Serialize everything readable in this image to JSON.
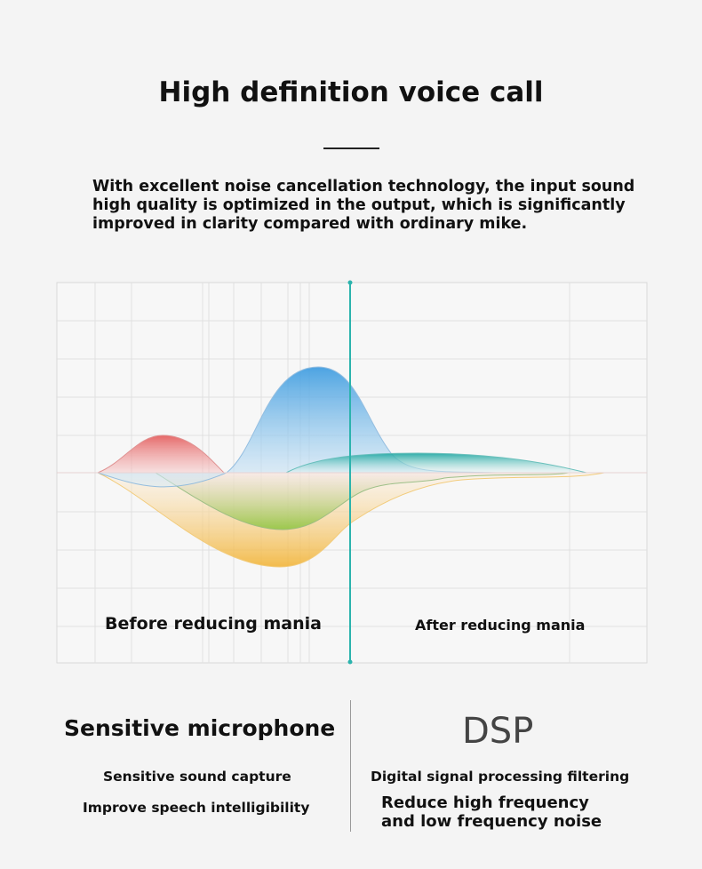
{
  "header": {
    "title": "High definition voice call",
    "intro": "With excellent noise cancellation technology, the input sound high quality is optimized in the output, which is significantly improved in clarity compared with ordinary mike."
  },
  "diagram": {
    "before_label": "Before reducing mania",
    "after_label": "After reducing mania",
    "colors": {
      "divider": "#2bb3ad",
      "red": "#e45a5a",
      "blue": "#3b9be0",
      "yellow": "#f2b53a",
      "green": "#8cc63f",
      "teal": "#1aa5a0"
    }
  },
  "features": {
    "left": {
      "title": "Sensitive microphone",
      "line1": "Sensitive sound capture",
      "line2": "Improve speech intelligibility"
    },
    "right": {
      "title": "DSP",
      "line1": "Digital signal processing filtering",
      "line2": "Reduce high frequency and low frequency noise"
    }
  }
}
